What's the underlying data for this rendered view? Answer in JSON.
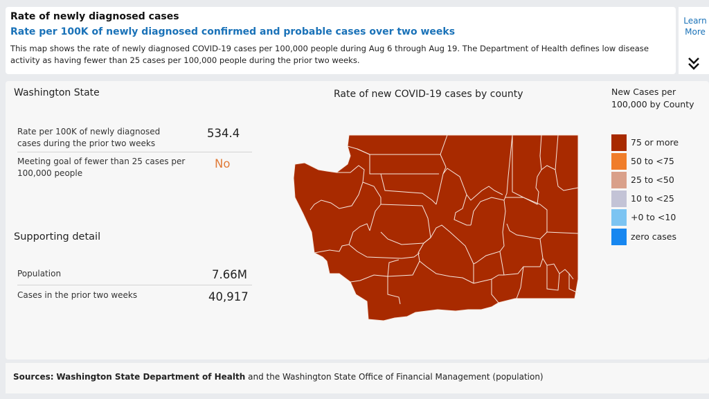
{
  "header": {
    "title": "Rate of newly diagnosed cases",
    "subtitle": "Rate per 100K of newly diagnosed confirmed and probable cases over two weeks",
    "description": "This map shows the rate of newly diagnosed COVID-19 cases per 100,000 people during Aug 6 through Aug 19. The Department of Health defines low disease activity as having fewer than 25 cases per 100,000 people during the prior two weeks."
  },
  "learn_more": {
    "label_line1": "Learn",
    "label_line2": "More",
    "chevron_icon": "double-chevron-down-icon"
  },
  "state_panel": {
    "title": "Washington State",
    "rate_label": "Rate per 100K of newly diagnosed cases during the prior two weeks",
    "rate_value": "534.4",
    "goal_label": "Meeting goal of fewer than 25 cases per 100,000 people",
    "goal_value": "No",
    "goal_color": "#e07b39"
  },
  "supporting": {
    "title": "Supporting detail",
    "population_label": "Population",
    "population_value": "7.66M",
    "cases_label": "Cases in the prior two weeks",
    "cases_value": "40,917"
  },
  "map": {
    "title": "Rate of new COVID-19 cases by county",
    "fill_color": "#a82a00",
    "border_color": "#f7e9e0"
  },
  "legend": {
    "title_line1": "New Cases per",
    "title_line2": "100,000 by County",
    "items": [
      {
        "label": "75 or more",
        "color": "#a82a00"
      },
      {
        "label": "50 to <75",
        "color": "#f07d2a"
      },
      {
        "label": "25 to <50",
        "color": "#d9a08a"
      },
      {
        "label": "10 to <25",
        "color": "#c3c3d6"
      },
      {
        "label": "+0 to <10",
        "color": "#7cc4f2"
      },
      {
        "label": "zero cases",
        "color": "#1787f0"
      }
    ]
  },
  "sources": {
    "prefix": "Sources:",
    "bold": "Washington State Department of Health",
    "rest": "and the Washington State Office of Financial Management (population)"
  }
}
